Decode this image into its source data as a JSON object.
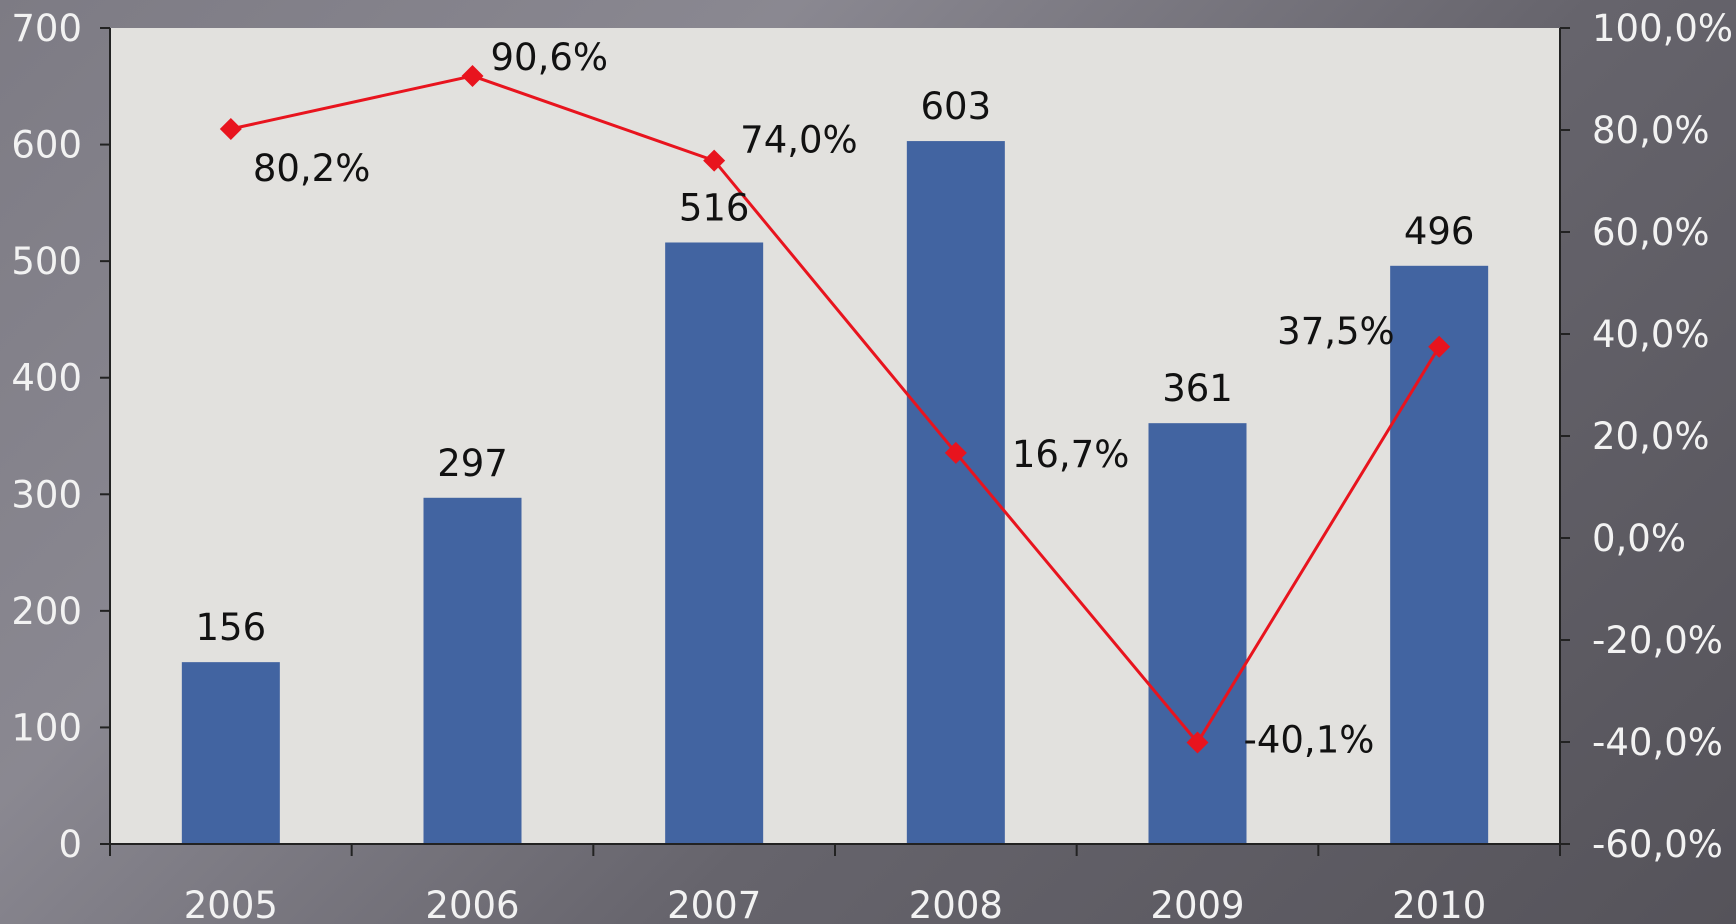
{
  "chart_data": {
    "type": "bar",
    "categories": [
      "2005",
      "2006",
      "2007",
      "2008",
      "2009",
      "2010"
    ],
    "series": [
      {
        "type": "bar",
        "axis": "left",
        "values": [
          156,
          297,
          516,
          603,
          361,
          496
        ],
        "labels": [
          "156",
          "297",
          "516",
          "603",
          "361",
          "496"
        ],
        "color": "#4264a1"
      },
      {
        "type": "line",
        "axis": "right",
        "values": [
          80.2,
          90.6,
          74.0,
          16.7,
          -40.1,
          37.5
        ],
        "labels": [
          "80,2%",
          "90,6%",
          "74,0%",
          "16,7%",
          "-40,1%",
          "37,5%"
        ],
        "color": "#e8141e"
      }
    ],
    "y_left": {
      "ylim": [
        0,
        700
      ],
      "ticks": [
        "0",
        "100",
        "200",
        "300",
        "400",
        "500",
        "600",
        "700"
      ]
    },
    "y_right": {
      "ylim": [
        -60,
        100
      ],
      "ticks": [
        "-60,0%",
        "-40,0%",
        "-20,0%",
        "0,0%",
        "20,0%",
        "40,0%",
        "60,0%",
        "80,0%",
        "100,0%"
      ]
    },
    "grid": false,
    "legend": "none",
    "colors": {
      "plot_background": "#e2e1de",
      "axis_text": "#f2f2f2",
      "label_text": "#111111"
    }
  }
}
